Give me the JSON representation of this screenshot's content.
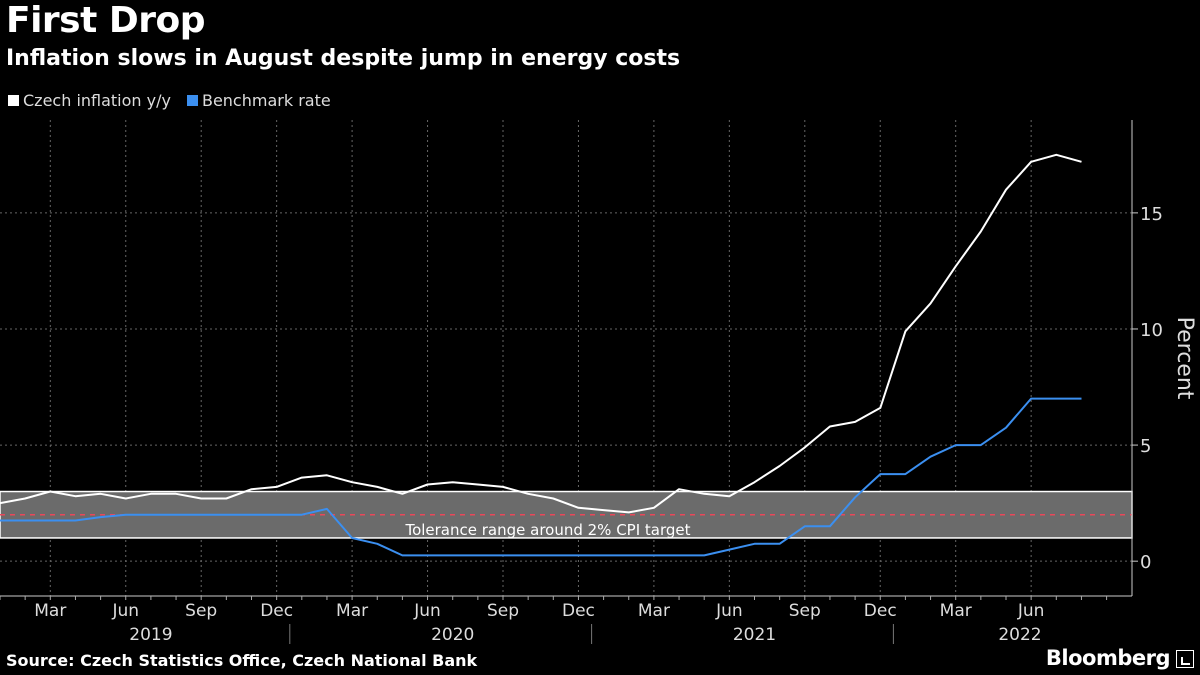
{
  "header": {
    "title": "First Drop",
    "subtitle": "Inflation slows in August despite jump in energy costs"
  },
  "legend": [
    {
      "label": "Czech inflation y/y",
      "color": "#ffffff"
    },
    {
      "label": "Benchmark rate",
      "color": "#3b8ff0"
    }
  ],
  "footer": {
    "source": "Source: Czech Statistics Office, Czech National Bank",
    "brand": "Bloomberg"
  },
  "chart_data": {
    "type": "line",
    "ylabel": "Percent",
    "ylim": [
      -1.5,
      19
    ],
    "yticks": [
      0,
      5,
      10,
      15
    ],
    "grid": true,
    "legend_position": "top-left",
    "x_month_labels": [
      "Mar",
      "Jun",
      "Sep",
      "Dec",
      "Mar",
      "Jun",
      "Sep",
      "Dec",
      "Mar",
      "Jun",
      "Sep",
      "Dec",
      "Mar",
      "Jun"
    ],
    "x_month_label_dates": [
      "2019-03",
      "2019-06",
      "2019-09",
      "2019-12",
      "2020-03",
      "2020-06",
      "2020-09",
      "2020-12",
      "2021-03",
      "2021-06",
      "2021-09",
      "2021-12",
      "2022-03",
      "2022-06"
    ],
    "x_year_labels": [
      "2019",
      "2020",
      "2021",
      "2022"
    ],
    "band": {
      "label": "Tolerance range around 2% CPI target",
      "low": 1,
      "high": 3,
      "target": 2
    },
    "x": [
      "2019-01",
      "2019-02",
      "2019-03",
      "2019-04",
      "2019-05",
      "2019-06",
      "2019-07",
      "2019-08",
      "2019-09",
      "2019-10",
      "2019-11",
      "2019-12",
      "2020-01",
      "2020-02",
      "2020-03",
      "2020-04",
      "2020-05",
      "2020-06",
      "2020-07",
      "2020-08",
      "2020-09",
      "2020-10",
      "2020-11",
      "2020-12",
      "2021-01",
      "2021-02",
      "2021-03",
      "2021-04",
      "2021-05",
      "2021-06",
      "2021-07",
      "2021-08",
      "2021-09",
      "2021-10",
      "2021-11",
      "2021-12",
      "2022-01",
      "2022-02",
      "2022-03",
      "2022-04",
      "2022-05",
      "2022-06",
      "2022-07",
      "2022-08"
    ],
    "series": [
      {
        "name": "Czech inflation y/y",
        "color": "#ffffff",
        "values": [
          2.5,
          2.7,
          3.0,
          2.8,
          2.9,
          2.7,
          2.9,
          2.9,
          2.7,
          2.7,
          3.1,
          3.2,
          3.6,
          3.7,
          3.4,
          3.2,
          2.9,
          3.3,
          3.4,
          3.3,
          3.2,
          2.9,
          2.7,
          2.3,
          2.2,
          2.1,
          2.3,
          3.1,
          2.9,
          2.8,
          3.4,
          4.1,
          4.9,
          5.8,
          6.0,
          6.6,
          9.9,
          11.1,
          12.7,
          14.2,
          16.0,
          17.2,
          17.5,
          17.2
        ]
      },
      {
        "name": "Benchmark rate",
        "color": "#3b8ff0",
        "values": [
          1.75,
          1.75,
          1.75,
          1.75,
          1.9,
          2.0,
          2.0,
          2.0,
          2.0,
          2.0,
          2.0,
          2.0,
          2.0,
          2.25,
          1.0,
          0.75,
          0.25,
          0.25,
          0.25,
          0.25,
          0.25,
          0.25,
          0.25,
          0.25,
          0.25,
          0.25,
          0.25,
          0.25,
          0.25,
          0.5,
          0.75,
          0.75,
          1.5,
          1.5,
          2.75,
          3.75,
          3.75,
          4.5,
          5.0,
          5.0,
          5.75,
          7.0,
          7.0,
          7.0
        ]
      }
    ]
  }
}
